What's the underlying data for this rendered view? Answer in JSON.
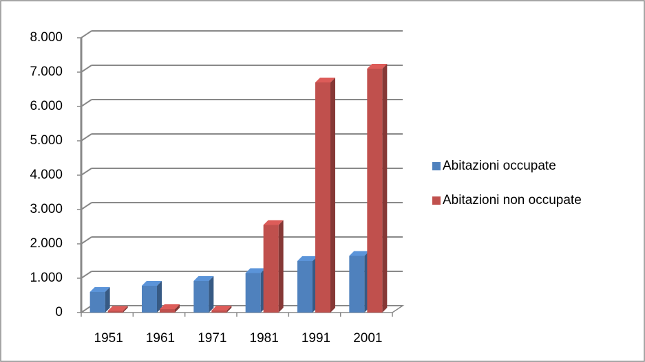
{
  "chart_data": {
    "type": "bar3d",
    "categories": [
      "1951",
      "1961",
      "1971",
      "1981",
      "1991",
      "2001"
    ],
    "series": [
      {
        "name": "Abitazioni occupate",
        "color": "#4f81bd",
        "values": [
          600,
          780,
          920,
          1150,
          1500,
          1650
        ]
      },
      {
        "name": "Abitazioni non occupate",
        "color": "#c0504d",
        "values": [
          50,
          100,
          60,
          2550,
          6700,
          7100
        ]
      }
    ],
    "ylim": [
      0,
      8000
    ],
    "yticks": [
      0,
      {
        "value": 1000,
        "label": "1.000"
      },
      {
        "value": 2000,
        "label": "2.000"
      },
      {
        "value": 3000,
        "label": "3.000"
      },
      {
        "value": 4000,
        "label": "4.000"
      },
      {
        "value": 5000,
        "label": "5.000"
      },
      {
        "value": 6000,
        "label": "6.000"
      },
      {
        "value": 7000,
        "label": "7.000"
      },
      {
        "value": 8000,
        "label": "8.000"
      }
    ],
    "grid": true,
    "legend": "right"
  }
}
